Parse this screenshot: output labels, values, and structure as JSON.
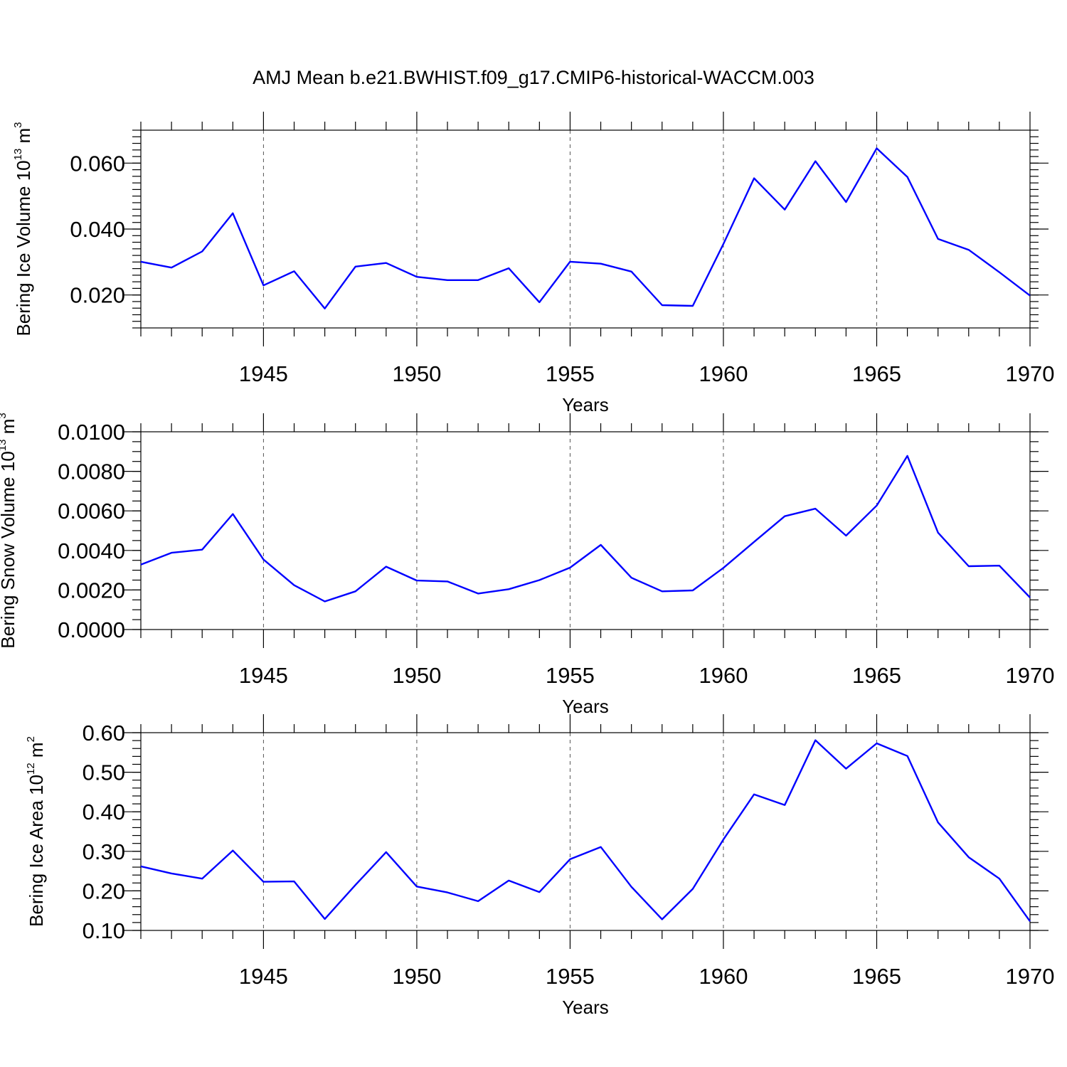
{
  "title": "AMJ Mean b.e21.BWHIST.f09_g17.CMIP6-historical-WACCM.003",
  "colors": {
    "line": "#0000ff",
    "axes": "#000000",
    "grid": "#555555"
  },
  "chart_data": [
    {
      "type": "line",
      "panel": "top",
      "xlabel": "Years",
      "ylabel": {
        "text": "Bering Ice Volume 10",
        "sup": "13",
        "unit": " m",
        "unit_sup": "3"
      },
      "xlim": [
        1941,
        1970
      ],
      "ylim": [
        0.01,
        0.07
      ],
      "x_ticks": [
        1945,
        1950,
        1955,
        1960,
        1965,
        1970
      ],
      "y_ticks": [
        0.02,
        0.04,
        0.06
      ],
      "y_tick_labels": [
        "0.020",
        "0.040",
        "0.060"
      ],
      "grid": "vertical dashed at major x ticks",
      "x": [
        1941,
        1942,
        1943,
        1944,
        1945,
        1946,
        1947,
        1948,
        1949,
        1950,
        1951,
        1952,
        1953,
        1954,
        1955,
        1956,
        1957,
        1958,
        1959,
        1960,
        1961,
        1962,
        1963,
        1964,
        1965,
        1966,
        1967,
        1968,
        1969,
        1970
      ],
      "values": [
        0.0301,
        0.0283,
        0.0332,
        0.0448,
        0.0229,
        0.0272,
        0.0159,
        0.0286,
        0.0297,
        0.0255,
        0.0245,
        0.0245,
        0.0281,
        0.0178,
        0.0301,
        0.0295,
        0.0271,
        0.0169,
        0.0167,
        0.0355,
        0.0554,
        0.0459,
        0.0606,
        0.0482,
        0.0645,
        0.0558,
        0.037,
        0.0337,
        0.0269,
        0.0198
      ]
    },
    {
      "type": "line",
      "panel": "middle",
      "xlabel": "Years",
      "ylabel": {
        "text": "Bering Snow Volume 10",
        "sup": "13",
        "unit": " m",
        "unit_sup": "3"
      },
      "xlim": [
        1941,
        1970
      ],
      "ylim": [
        0.0,
        0.01
      ],
      "x_ticks": [
        1945,
        1950,
        1955,
        1960,
        1965,
        1970
      ],
      "y_ticks": [
        0.0,
        0.002,
        0.004,
        0.006,
        0.008,
        0.01
      ],
      "y_tick_labels": [
        "0.0000",
        "0.0020",
        "0.0040",
        "0.0060",
        "0.0080",
        "0.0100"
      ],
      "grid": "vertical dashed at major x ticks",
      "x": [
        1941,
        1942,
        1943,
        1944,
        1945,
        1946,
        1947,
        1948,
        1949,
        1950,
        1951,
        1952,
        1953,
        1954,
        1955,
        1956,
        1957,
        1958,
        1959,
        1960,
        1961,
        1962,
        1963,
        1964,
        1965,
        1966,
        1967,
        1968,
        1969,
        1970
      ],
      "values": [
        0.00328,
        0.00388,
        0.00404,
        0.00584,
        0.00354,
        0.00224,
        0.00142,
        0.00193,
        0.00318,
        0.00248,
        0.00243,
        0.00182,
        0.00204,
        0.0025,
        0.00313,
        0.00428,
        0.00262,
        0.00193,
        0.00198,
        0.00312,
        0.00443,
        0.00573,
        0.00611,
        0.00475,
        0.00627,
        0.00878,
        0.0049,
        0.0032,
        0.00323,
        0.00162
      ]
    },
    {
      "type": "line",
      "panel": "bottom",
      "xlabel": "Years",
      "ylabel": {
        "text": "Bering Ice Area 10",
        "sup": "12",
        "unit": " m",
        "unit_sup": "2"
      },
      "xlim": [
        1941,
        1970
      ],
      "ylim": [
        0.1,
        0.6
      ],
      "x_ticks": [
        1945,
        1950,
        1955,
        1960,
        1965,
        1970
      ],
      "y_ticks": [
        0.1,
        0.2,
        0.3,
        0.4,
        0.5,
        0.6
      ],
      "y_tick_labels": [
        "0.10",
        "0.20",
        "0.30",
        "0.40",
        "0.50",
        "0.60"
      ],
      "grid": "vertical dashed at major x ticks",
      "x": [
        1941,
        1942,
        1943,
        1944,
        1945,
        1946,
        1947,
        1948,
        1949,
        1950,
        1951,
        1952,
        1953,
        1954,
        1955,
        1956,
        1957,
        1958,
        1959,
        1960,
        1961,
        1962,
        1963,
        1964,
        1965,
        1966,
        1967,
        1968,
        1969,
        1970
      ],
      "values": [
        0.262,
        0.244,
        0.231,
        0.302,
        0.223,
        0.224,
        0.129,
        0.215,
        0.298,
        0.211,
        0.196,
        0.174,
        0.226,
        0.197,
        0.28,
        0.311,
        0.21,
        0.128,
        0.205,
        0.33,
        0.444,
        0.417,
        0.581,
        0.509,
        0.573,
        0.541,
        0.373,
        0.285,
        0.231,
        0.123
      ]
    }
  ]
}
